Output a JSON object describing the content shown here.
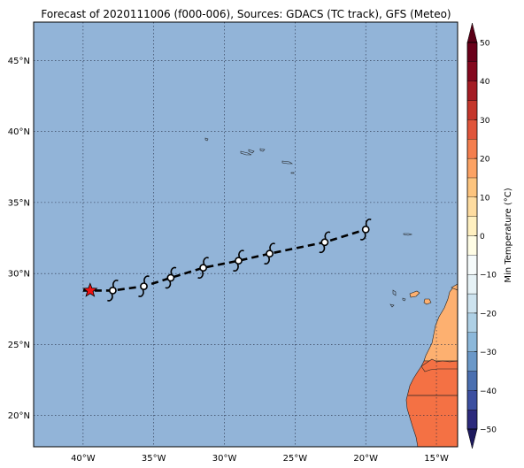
{
  "title": "Forecast of 2020111006 (f000-006), Sources: GDACS (TC track), GFS (Meteo)",
  "map": {
    "lon_range": [
      -43.5,
      -13.5
    ],
    "lat_range": [
      17.8,
      47.7
    ],
    "lon_ticks": [
      {
        "value": -40,
        "label": "40°W"
      },
      {
        "value": -35,
        "label": "35°W"
      },
      {
        "value": -30,
        "label": "30°W"
      },
      {
        "value": -25,
        "label": "25°W"
      },
      {
        "value": -20,
        "label": "20°W"
      },
      {
        "value": -15,
        "label": "15°W"
      }
    ],
    "lat_ticks": [
      {
        "value": 20,
        "label": "20°N"
      },
      {
        "value": 25,
        "label": "25°N"
      },
      {
        "value": 30,
        "label": "30°N"
      },
      {
        "value": 35,
        "label": "35°N"
      },
      {
        "value": 40,
        "label": "40°N"
      },
      {
        "value": 45,
        "label": "45°N"
      }
    ],
    "grid": true,
    "ocean_color": "#92b4d8"
  },
  "track": {
    "line_style": "dashed",
    "current_position": {
      "lon": -39.5,
      "lat": 28.8,
      "marker": "star",
      "color": "#ee1111"
    },
    "points": [
      {
        "lon": -37.9,
        "lat": 28.8
      },
      {
        "lon": -35.7,
        "lat": 29.1
      },
      {
        "lon": -33.8,
        "lat": 29.7
      },
      {
        "lon": -31.5,
        "lat": 30.4
      },
      {
        "lon": -29.0,
        "lat": 30.9
      },
      {
        "lon": -26.8,
        "lat": 31.4
      },
      {
        "lon": -22.9,
        "lat": 32.2
      },
      {
        "lon": -20.0,
        "lat": 33.1
      }
    ],
    "marker_icon": "cyclone-icon"
  },
  "colorbar": {
    "label": "Min Temperature (°C)",
    "levels": [
      -50,
      -45,
      -40,
      -35,
      -30,
      -25,
      -20,
      -15,
      -10,
      -5,
      0,
      5,
      10,
      15,
      20,
      25,
      30,
      35,
      40,
      45,
      50
    ],
    "colors": [
      "#2c2a7c",
      "#3c4fa0",
      "#4a6fb0",
      "#6b98c8",
      "#8cb8da",
      "#aed0e5",
      "#cde3ef",
      "#e6f2f6",
      "#f6fbfb",
      "#fffde5",
      "#fff0c0",
      "#fedca0",
      "#fdc47e",
      "#fca264",
      "#f47e4e",
      "#e0553b",
      "#c4362b",
      "#a41c24",
      "#84081e",
      "#6a001a"
    ],
    "under_color": "#1e1a5e",
    "over_color": "#5a0016",
    "tick_labels": [
      {
        "value": -50,
        "label": "−50"
      },
      {
        "value": -40,
        "label": "−40"
      },
      {
        "value": -30,
        "label": "−30"
      },
      {
        "value": -20,
        "label": "−20"
      },
      {
        "value": -10,
        "label": "−10"
      },
      {
        "value": 0,
        "label": "0"
      },
      {
        "value": 10,
        "label": "10"
      },
      {
        "value": 20,
        "label": "20"
      },
      {
        "value": 30,
        "label": "30"
      },
      {
        "value": 40,
        "label": "40"
      },
      {
        "value": 50,
        "label": "50"
      }
    ]
  },
  "land_colors": {
    "warm": "#f47144",
    "mild": "#fdb070"
  }
}
